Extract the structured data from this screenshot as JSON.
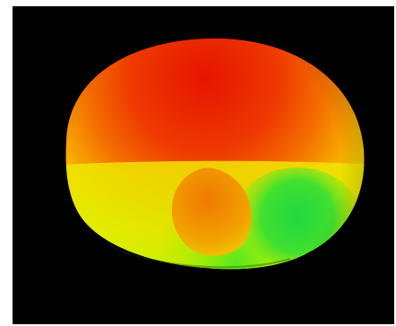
{
  "scene": {
    "background_color": "#000000",
    "page_color": "#ffffff",
    "surface_colors": {
      "top": "#e81800",
      "upper_mid": "#f25a00",
      "middle": "#f7b800",
      "equator": "#f5e400",
      "lower": "#d6f000",
      "lobe_orange": "#f08800",
      "lobe_green": "#22dd33",
      "bottom_green": "#7fef10"
    }
  }
}
